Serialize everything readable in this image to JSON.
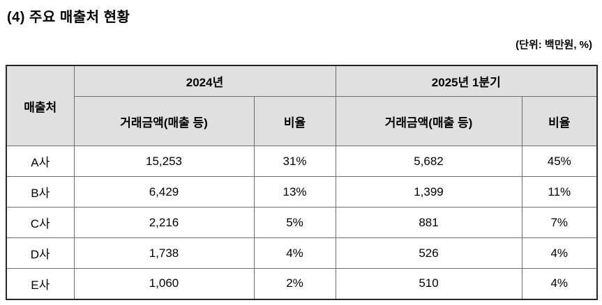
{
  "page": {
    "title": "(4) 주요 매출처 현황",
    "unit_note": "(단위: 백만원, %)"
  },
  "colors": {
    "header_bg": "#e0e0e0",
    "border": "#6e6e6e",
    "text": "#000000",
    "page_bg": "#ffffff"
  },
  "table": {
    "corner_header": "매출처",
    "groups": [
      {
        "label": "2024년",
        "columns": [
          "거래금액(매출 등)",
          "비율"
        ]
      },
      {
        "label": "2025년 1분기",
        "columns": [
          "거래금액(매출 등)",
          "비율"
        ]
      }
    ],
    "rows": [
      {
        "customer": "A사",
        "values": [
          "15,253",
          "31%",
          "5,682",
          "45%"
        ]
      },
      {
        "customer": "B사",
        "values": [
          "6,429",
          "13%",
          "1,399",
          "11%"
        ]
      },
      {
        "customer": "C사",
        "values": [
          "2,216",
          "5%",
          "881",
          "7%"
        ]
      },
      {
        "customer": "D사",
        "values": [
          "1,738",
          "4%",
          "526",
          "4%"
        ]
      },
      {
        "customer": "E사",
        "values": [
          "1,060",
          "2%",
          "510",
          "4%"
        ]
      }
    ]
  }
}
